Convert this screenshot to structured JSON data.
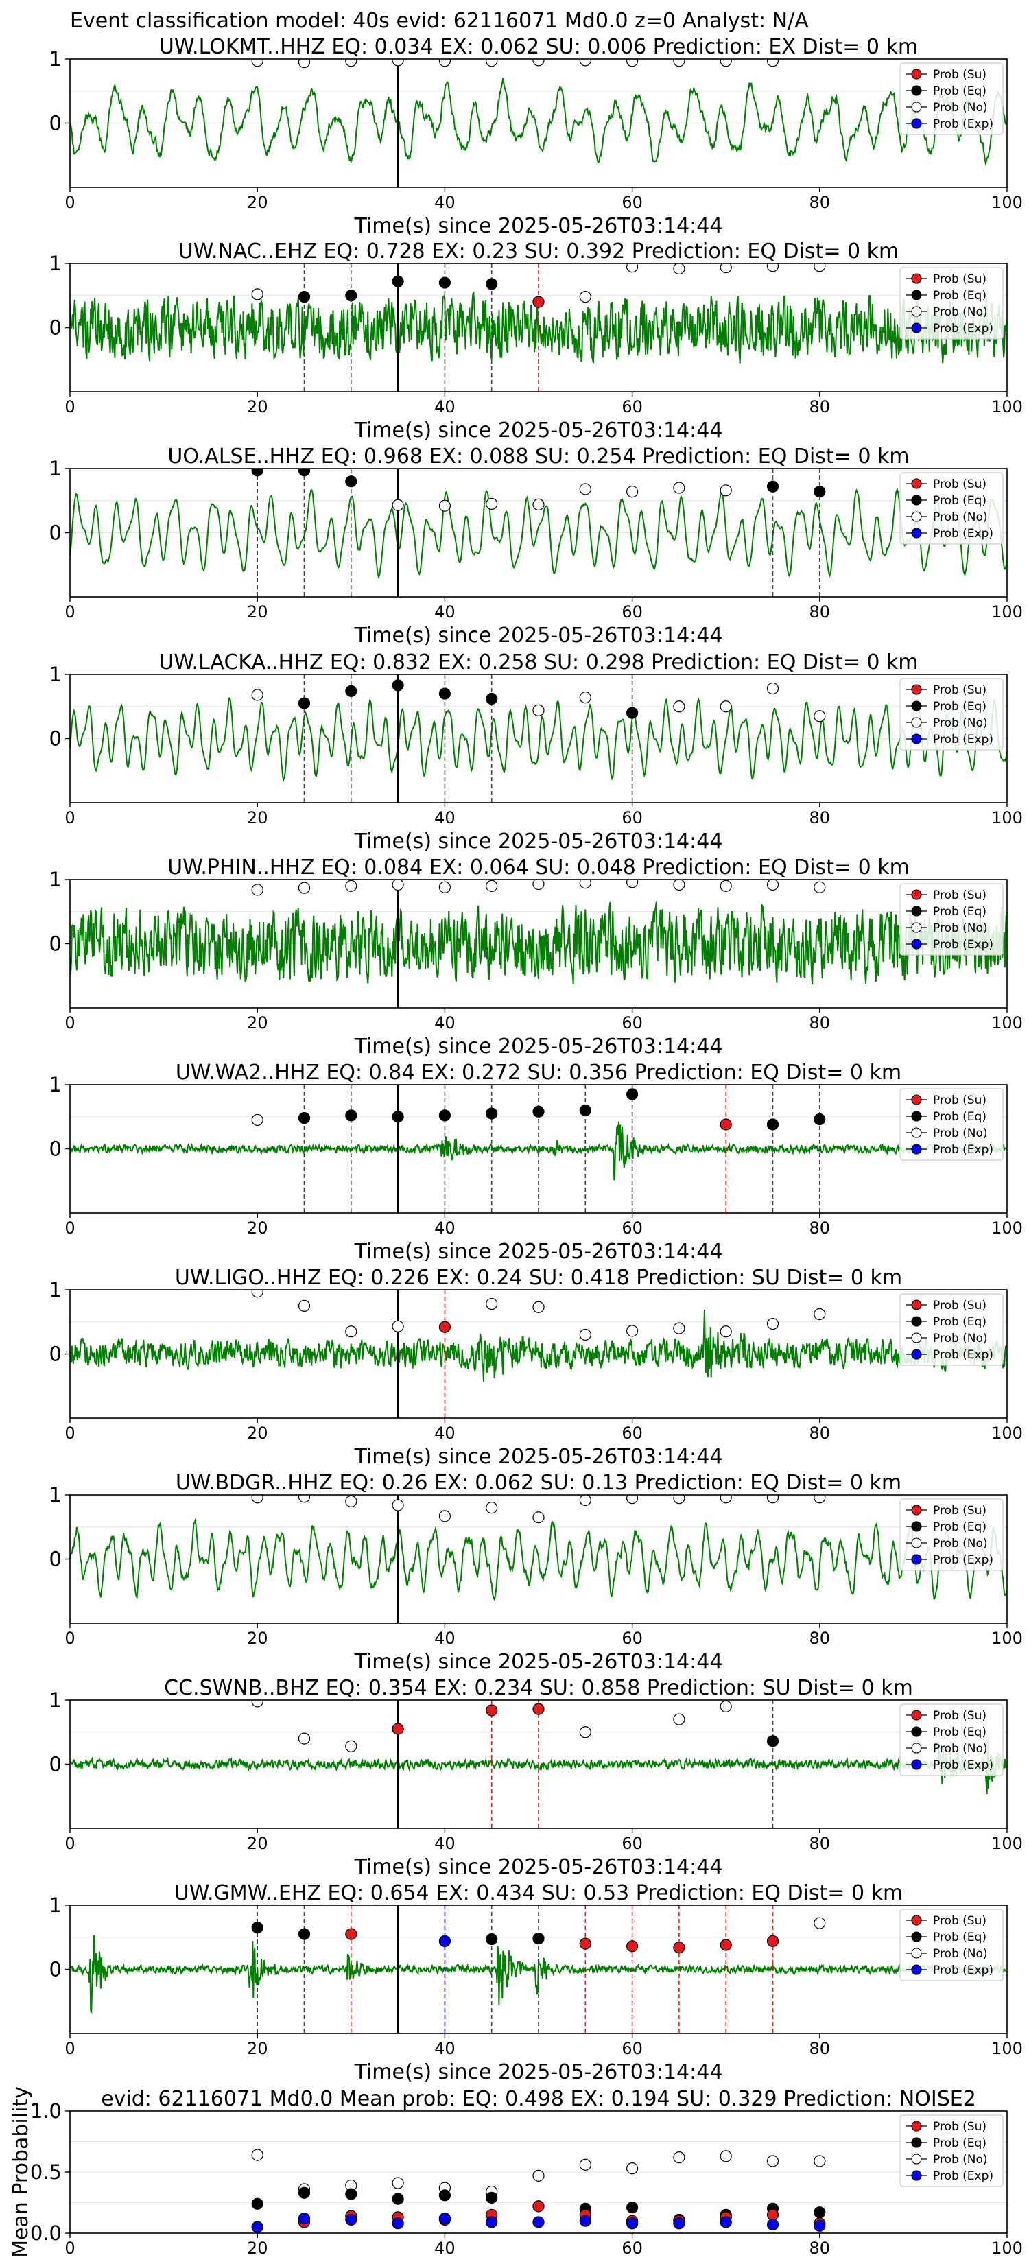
{
  "suptitle": "Event classification model: 40s evid: 62116071 Md0.0 z=0 Analyst: N/A",
  "colors": {
    "waveform": "#008000",
    "su": "#e41a1c",
    "eq": "#000000",
    "no": "#ffffff",
    "exp": "#0000ee",
    "grid": "#e6e6e6"
  },
  "legend": [
    "Prob (Su)",
    "Prob (Eq)",
    "Prob (No)",
    "Prob (Exp)"
  ],
  "chart_data": [
    {
      "type": "line",
      "title": "UW.LOKMT..HHZ   EQ: 0.034  EX: 0.062  SU: 0.006   Prediction: EX    Dist= 0 km",
      "xlabel": "Time(s) since 2025-05-26T03:14:44",
      "xlim": [
        0,
        100
      ],
      "ylim": [
        -1,
        1
      ],
      "yticks": [
        0,
        1
      ],
      "xticks": [
        0,
        20,
        40,
        60,
        80,
        100
      ],
      "origin_time": 35,
      "wave": {
        "style": "lowfreq",
        "seed": 11,
        "amp": 0.55,
        "cycles": 34
      },
      "points": [
        {
          "x": 20,
          "y": 0.97,
          "cls": "no"
        },
        {
          "x": 25,
          "y": 0.95,
          "cls": "no"
        },
        {
          "x": 30,
          "y": 0.97,
          "cls": "no"
        },
        {
          "x": 35,
          "y": 0.98,
          "cls": "no"
        },
        {
          "x": 40,
          "y": 0.97,
          "cls": "no"
        },
        {
          "x": 45,
          "y": 0.97,
          "cls": "no"
        },
        {
          "x": 50,
          "y": 0.98,
          "cls": "no"
        },
        {
          "x": 55,
          "y": 0.98,
          "cls": "no"
        },
        {
          "x": 60,
          "y": 0.97,
          "cls": "no"
        },
        {
          "x": 65,
          "y": 0.97,
          "cls": "no"
        },
        {
          "x": 70,
          "y": 0.97,
          "cls": "no"
        },
        {
          "x": 75,
          "y": 0.97,
          "cls": "no"
        }
      ]
    },
    {
      "type": "line",
      "title": "UW.NAC..EHZ   EQ: 0.728  EX: 0.23  SU: 0.392   Prediction: EQ    Dist= 0 km",
      "xlabel": "Time(s) since 2025-05-26T03:14:44",
      "xlim": [
        0,
        100
      ],
      "ylim": [
        -1,
        1
      ],
      "yticks": [
        0,
        1
      ],
      "xticks": [
        0,
        20,
        40,
        60,
        80,
        100
      ],
      "origin_time": 35,
      "wave": {
        "style": "noise",
        "seed": 23,
        "amp": 0.4,
        "cycles": 200
      },
      "points": [
        {
          "x": 20,
          "y": 0.52,
          "cls": "no"
        },
        {
          "x": 25,
          "y": 0.48,
          "cls": "eq"
        },
        {
          "x": 30,
          "y": 0.5,
          "cls": "eq"
        },
        {
          "x": 35,
          "y": 0.72,
          "cls": "eq"
        },
        {
          "x": 40,
          "y": 0.7,
          "cls": "eq"
        },
        {
          "x": 45,
          "y": 0.68,
          "cls": "eq"
        },
        {
          "x": 50,
          "y": 0.4,
          "cls": "su"
        },
        {
          "x": 55,
          "y": 0.48,
          "cls": "no"
        },
        {
          "x": 60,
          "y": 0.95,
          "cls": "no"
        },
        {
          "x": 65,
          "y": 0.92,
          "cls": "no"
        },
        {
          "x": 70,
          "y": 0.94,
          "cls": "no"
        },
        {
          "x": 75,
          "y": 0.96,
          "cls": "no"
        },
        {
          "x": 80,
          "y": 0.96,
          "cls": "no"
        }
      ]
    },
    {
      "type": "line",
      "title": "UO.ALSE..HHZ   EQ: 0.968  EX: 0.088  SU: 0.254   Prediction: EQ    Dist= 0 km",
      "xlabel": "Time(s) since 2025-05-26T03:14:44",
      "xlim": [
        0,
        100
      ],
      "ylim": [
        -1,
        1
      ],
      "yticks": [
        0,
        1
      ],
      "xticks": [
        0,
        20,
        40,
        60,
        80,
        100
      ],
      "origin_time": 35,
      "wave": {
        "style": "smooth",
        "seed": 37,
        "amp": 0.6,
        "cycles": 48
      },
      "points": [
        {
          "x": 20,
          "y": 0.97,
          "cls": "eq"
        },
        {
          "x": 25,
          "y": 0.97,
          "cls": "eq"
        },
        {
          "x": 30,
          "y": 0.8,
          "cls": "eq"
        },
        {
          "x": 35,
          "y": 0.43,
          "cls": "no"
        },
        {
          "x": 40,
          "y": 0.42,
          "cls": "no"
        },
        {
          "x": 45,
          "y": 0.45,
          "cls": "no"
        },
        {
          "x": 50,
          "y": 0.44,
          "cls": "no"
        },
        {
          "x": 55,
          "y": 0.68,
          "cls": "no"
        },
        {
          "x": 60,
          "y": 0.64,
          "cls": "no"
        },
        {
          "x": 65,
          "y": 0.7,
          "cls": "no"
        },
        {
          "x": 70,
          "y": 0.66,
          "cls": "no"
        },
        {
          "x": 75,
          "y": 0.72,
          "cls": "eq"
        },
        {
          "x": 80,
          "y": 0.64,
          "cls": "eq"
        }
      ]
    },
    {
      "type": "line",
      "title": "UW.LACKA..HHZ   EQ: 0.832  EX: 0.258  SU: 0.298   Prediction: EQ    Dist= 0 km",
      "xlabel": "Time(s) since 2025-05-26T03:14:44",
      "xlim": [
        0,
        100
      ],
      "ylim": [
        -1,
        1
      ],
      "yticks": [
        0,
        1
      ],
      "xticks": [
        0,
        20,
        40,
        60,
        80,
        100
      ],
      "origin_time": 35,
      "wave": {
        "style": "smooth",
        "seed": 41,
        "amp": 0.55,
        "cycles": 60
      },
      "points": [
        {
          "x": 20,
          "y": 0.68,
          "cls": "no"
        },
        {
          "x": 25,
          "y": 0.55,
          "cls": "eq"
        },
        {
          "x": 30,
          "y": 0.74,
          "cls": "eq"
        },
        {
          "x": 35,
          "y": 0.83,
          "cls": "eq"
        },
        {
          "x": 40,
          "y": 0.7,
          "cls": "eq"
        },
        {
          "x": 45,
          "y": 0.62,
          "cls": "eq"
        },
        {
          "x": 50,
          "y": 0.44,
          "cls": "no"
        },
        {
          "x": 55,
          "y": 0.64,
          "cls": "no"
        },
        {
          "x": 60,
          "y": 0.4,
          "cls": "eq"
        },
        {
          "x": 65,
          "y": 0.5,
          "cls": "no"
        },
        {
          "x": 70,
          "y": 0.5,
          "cls": "no"
        },
        {
          "x": 75,
          "y": 0.78,
          "cls": "no"
        },
        {
          "x": 80,
          "y": 0.35,
          "cls": "no"
        }
      ]
    },
    {
      "type": "line",
      "title": "UW.PHIN..HHZ   EQ: 0.084  EX: 0.064  SU: 0.048   Prediction: EQ    Dist= 0 km",
      "xlabel": "Time(s) since 2025-05-26T03:14:44",
      "xlim": [
        0,
        100
      ],
      "ylim": [
        -1,
        1
      ],
      "yticks": [
        0,
        1
      ],
      "xticks": [
        0,
        20,
        40,
        60,
        80,
        100
      ],
      "origin_time": 35,
      "wave": {
        "style": "noise",
        "seed": 53,
        "amp": 0.45,
        "cycles": 220
      },
      "points": [
        {
          "x": 20,
          "y": 0.84,
          "cls": "no"
        },
        {
          "x": 25,
          "y": 0.87,
          "cls": "no"
        },
        {
          "x": 30,
          "y": 0.9,
          "cls": "no"
        },
        {
          "x": 35,
          "y": 0.92,
          "cls": "no"
        },
        {
          "x": 40,
          "y": 0.88,
          "cls": "no"
        },
        {
          "x": 45,
          "y": 0.9,
          "cls": "no"
        },
        {
          "x": 50,
          "y": 0.93,
          "cls": "no"
        },
        {
          "x": 55,
          "y": 0.95,
          "cls": "no"
        },
        {
          "x": 60,
          "y": 0.96,
          "cls": "no"
        },
        {
          "x": 65,
          "y": 0.92,
          "cls": "no"
        },
        {
          "x": 70,
          "y": 0.9,
          "cls": "no"
        },
        {
          "x": 75,
          "y": 0.92,
          "cls": "no"
        },
        {
          "x": 80,
          "y": 0.88,
          "cls": "no"
        }
      ]
    },
    {
      "type": "line",
      "title": "UW.WA2..HHZ   EQ: 0.84  EX: 0.272  SU: 0.356   Prediction: EQ    Dist= 0 km",
      "xlabel": "Time(s) since 2025-05-26T03:14:44",
      "xlim": [
        0,
        100
      ],
      "ylim": [
        -1,
        1
      ],
      "yticks": [
        0,
        1
      ],
      "xticks": [
        0,
        20,
        40,
        60,
        80,
        100
      ],
      "origin_time": 35,
      "wave": {
        "style": "quiet",
        "seed": 67,
        "amp": 0.05,
        "cycles": 260,
        "bursts": [
          [
            40,
            0.3,
            3.5
          ],
          [
            58.5,
            0.5,
            3.0
          ],
          [
            52,
            0.1,
            2.0
          ]
        ]
      },
      "points": [
        {
          "x": 20,
          "y": 0.45,
          "cls": "no"
        },
        {
          "x": 25,
          "y": 0.48,
          "cls": "eq"
        },
        {
          "x": 30,
          "y": 0.52,
          "cls": "eq"
        },
        {
          "x": 35,
          "y": 0.5,
          "cls": "eq"
        },
        {
          "x": 40,
          "y": 0.52,
          "cls": "eq"
        },
        {
          "x": 45,
          "y": 0.55,
          "cls": "eq"
        },
        {
          "x": 50,
          "y": 0.58,
          "cls": "eq"
        },
        {
          "x": 55,
          "y": 0.6,
          "cls": "eq"
        },
        {
          "x": 60,
          "y": 0.85,
          "cls": "eq"
        },
        {
          "x": 70,
          "y": 0.38,
          "cls": "su"
        },
        {
          "x": 75,
          "y": 0.38,
          "cls": "eq"
        },
        {
          "x": 80,
          "y": 0.46,
          "cls": "eq"
        }
      ]
    },
    {
      "type": "line",
      "title": "UW.LIGO..HHZ   EQ: 0.226  EX: 0.24  SU: 0.418   Prediction: SU    Dist= 0 km",
      "xlabel": "Time(s) since 2025-05-26T03:14:44",
      "xlim": [
        0,
        100
      ],
      "ylim": [
        -1,
        1
      ],
      "yticks": [
        0,
        1
      ],
      "xticks": [
        0,
        20,
        40,
        60,
        80,
        100
      ],
      "origin_time": 35,
      "wave": {
        "style": "noise",
        "seed": 79,
        "amp": 0.18,
        "cycles": 240,
        "bursts": [
          [
            44,
            0.32,
            8
          ],
          [
            68,
            0.55,
            4
          ],
          [
            72,
            0.3,
            3
          ]
        ]
      },
      "points": [
        {
          "x": 20,
          "y": 0.97,
          "cls": "no"
        },
        {
          "x": 25,
          "y": 0.75,
          "cls": "no"
        },
        {
          "x": 30,
          "y": 0.35,
          "cls": "no"
        },
        {
          "x": 35,
          "y": 0.43,
          "cls": "no"
        },
        {
          "x": 40,
          "y": 0.42,
          "cls": "su"
        },
        {
          "x": 45,
          "y": 0.78,
          "cls": "no"
        },
        {
          "x": 50,
          "y": 0.73,
          "cls": "no"
        },
        {
          "x": 55,
          "y": 0.3,
          "cls": "no"
        },
        {
          "x": 60,
          "y": 0.36,
          "cls": "no"
        },
        {
          "x": 65,
          "y": 0.4,
          "cls": "no"
        },
        {
          "x": 70,
          "y": 0.35,
          "cls": "no"
        },
        {
          "x": 75,
          "y": 0.47,
          "cls": "no"
        },
        {
          "x": 80,
          "y": 0.62,
          "cls": "no"
        }
      ]
    },
    {
      "type": "line",
      "title": "UW.BDGR..HHZ   EQ: 0.26  EX: 0.062  SU: 0.13   Prediction: EQ    Dist= 0 km",
      "xlabel": "Time(s) since 2025-05-26T03:14:44",
      "xlim": [
        0,
        100
      ],
      "ylim": [
        -1,
        1
      ],
      "yticks": [
        0,
        1
      ],
      "xticks": [
        0,
        20,
        40,
        60,
        80,
        100
      ],
      "origin_time": 35,
      "wave": {
        "style": "lowfreq",
        "seed": 83,
        "amp": 0.5,
        "cycles": 55
      },
      "points": [
        {
          "x": 20,
          "y": 0.96,
          "cls": "no"
        },
        {
          "x": 25,
          "y": 0.97,
          "cls": "no"
        },
        {
          "x": 30,
          "y": 0.9,
          "cls": "no"
        },
        {
          "x": 35,
          "y": 0.84,
          "cls": "no"
        },
        {
          "x": 40,
          "y": 0.67,
          "cls": "no"
        },
        {
          "x": 45,
          "y": 0.8,
          "cls": "no"
        },
        {
          "x": 50,
          "y": 0.65,
          "cls": "no"
        },
        {
          "x": 55,
          "y": 0.92,
          "cls": "no"
        },
        {
          "x": 60,
          "y": 0.95,
          "cls": "no"
        },
        {
          "x": 65,
          "y": 0.95,
          "cls": "no"
        },
        {
          "x": 70,
          "y": 0.96,
          "cls": "no"
        },
        {
          "x": 75,
          "y": 0.96,
          "cls": "no"
        },
        {
          "x": 80,
          "y": 0.96,
          "cls": "no"
        }
      ]
    },
    {
      "type": "line",
      "title": "CC.SWNB..BHZ   EQ: 0.354  EX: 0.234  SU: 0.858   Prediction: SU    Dist= 0 km",
      "xlabel": "Time(s) since 2025-05-26T03:14:44",
      "xlim": [
        0,
        100
      ],
      "ylim": [
        -1,
        1
      ],
      "yticks": [
        0,
        1
      ],
      "xticks": [
        0,
        20,
        40,
        60,
        80,
        100
      ],
      "origin_time": 35,
      "wave": {
        "style": "quiet",
        "seed": 97,
        "amp": 0.06,
        "cycles": 260,
        "bursts": [
          [
            93,
            0.35,
            5
          ],
          [
            98,
            0.4,
            2.5
          ]
        ]
      },
      "points": [
        {
          "x": 20,
          "y": 0.98,
          "cls": "no"
        },
        {
          "x": 25,
          "y": 0.4,
          "cls": "no"
        },
        {
          "x": 30,
          "y": 0.28,
          "cls": "no"
        },
        {
          "x": 35,
          "y": 0.55,
          "cls": "su"
        },
        {
          "x": 45,
          "y": 0.84,
          "cls": "su"
        },
        {
          "x": 50,
          "y": 0.86,
          "cls": "su"
        },
        {
          "x": 55,
          "y": 0.5,
          "cls": "no"
        },
        {
          "x": 65,
          "y": 0.7,
          "cls": "no"
        },
        {
          "x": 70,
          "y": 0.9,
          "cls": "no"
        },
        {
          "x": 75,
          "y": 0.36,
          "cls": "eq"
        }
      ]
    },
    {
      "type": "line",
      "title": "UW.GMW..EHZ   EQ: 0.654  EX: 0.434  SU: 0.53   Prediction: EQ    Dist= 0 km",
      "xlabel": "Time(s) since 2025-05-26T03:14:44",
      "xlim": [
        0,
        100
      ],
      "ylim": [
        -1,
        1
      ],
      "yticks": [
        0,
        1
      ],
      "xticks": [
        0,
        20,
        40,
        60,
        80,
        100
      ],
      "origin_time": 35,
      "wave": {
        "style": "quiet",
        "seed": 101,
        "amp": 0.05,
        "cycles": 260,
        "bursts": [
          [
            2.5,
            0.7,
            2
          ],
          [
            19.5,
            0.45,
            2.5
          ],
          [
            30,
            0.25,
            2
          ],
          [
            46,
            0.55,
            2.5
          ],
          [
            50,
            0.35,
            2
          ]
        ]
      },
      "points": [
        {
          "x": 20,
          "y": 0.65,
          "cls": "eq"
        },
        {
          "x": 25,
          "y": 0.55,
          "cls": "eq"
        },
        {
          "x": 30,
          "y": 0.55,
          "cls": "su"
        },
        {
          "x": 40,
          "y": 0.44,
          "cls": "exp"
        },
        {
          "x": 45,
          "y": 0.47,
          "cls": "eq"
        },
        {
          "x": 50,
          "y": 0.48,
          "cls": "eq"
        },
        {
          "x": 55,
          "y": 0.4,
          "cls": "su"
        },
        {
          "x": 60,
          "y": 0.36,
          "cls": "su"
        },
        {
          "x": 65,
          "y": 0.34,
          "cls": "su"
        },
        {
          "x": 70,
          "y": 0.38,
          "cls": "su"
        },
        {
          "x": 75,
          "y": 0.44,
          "cls": "su"
        },
        {
          "x": 80,
          "y": 0.72,
          "cls": "no"
        }
      ]
    },
    {
      "type": "scatter",
      "title": "evid: 62116071  Md0.0   Mean prob:   EQ: 0.498  EX: 0.194  SU: 0.329   Prediction: NOISE2",
      "ylabel": "Mean Probability",
      "xlim": [
        0,
        100
      ],
      "ylim": [
        0,
        1
      ],
      "yticks": [
        0.0,
        0.5,
        1.0
      ],
      "yticklabels": [
        "0.0",
        "0.5",
        "1.0"
      ],
      "xticks": [
        0,
        20,
        40,
        60,
        80,
        100
      ],
      "x": [
        20,
        25,
        30,
        35,
        40,
        45,
        50,
        55,
        60,
        65,
        70,
        75,
        80
      ],
      "series": [
        {
          "name": "Prob (No)",
          "cls": "no",
          "values": [
            0.64,
            0.36,
            0.39,
            0.41,
            0.37,
            0.34,
            0.47,
            0.56,
            0.53,
            0.62,
            0.63,
            0.59,
            0.59
          ]
        },
        {
          "name": "Prob (Eq)",
          "cls": "eq",
          "values": [
            0.24,
            0.33,
            0.32,
            0.28,
            0.31,
            0.29,
            0.22,
            0.2,
            0.21,
            0.11,
            0.15,
            0.2,
            0.17
          ]
        },
        {
          "name": "Prob (Su)",
          "cls": "su",
          "values": [
            0.05,
            0.09,
            0.14,
            0.13,
            0.11,
            0.15,
            0.22,
            0.15,
            0.1,
            0.1,
            0.13,
            0.15,
            0.08
          ]
        },
        {
          "name": "Prob (Exp)",
          "cls": "exp",
          "values": [
            0.05,
            0.12,
            0.11,
            0.08,
            0.12,
            0.09,
            0.09,
            0.1,
            0.08,
            0.08,
            0.09,
            0.07,
            0.06
          ]
        }
      ]
    }
  ]
}
